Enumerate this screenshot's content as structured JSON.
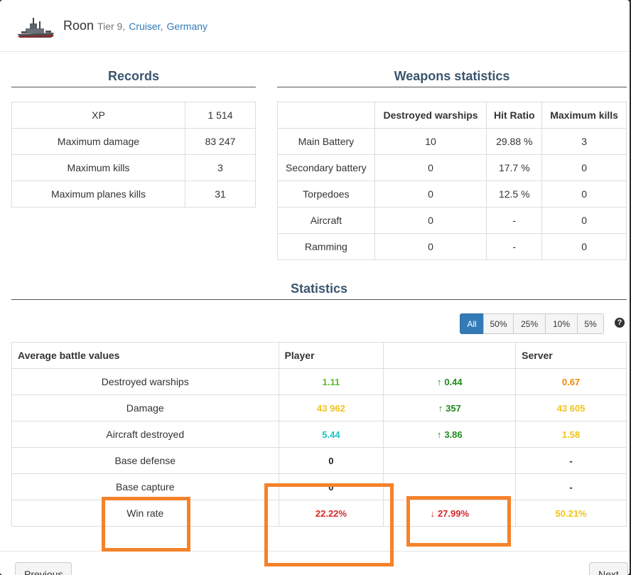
{
  "ship": {
    "name": "Roon",
    "tier": "Tier 9,",
    "type_link": "Cruiser,",
    "nation_link": "Germany"
  },
  "records": {
    "title": "Records",
    "rows": [
      {
        "label": "XP",
        "value": "1 514"
      },
      {
        "label": "Maximum damage",
        "value": "83 247"
      },
      {
        "label": "Maximum kills",
        "value": "3"
      },
      {
        "label": "Maximum planes kills",
        "value": "31"
      }
    ]
  },
  "weapons": {
    "title": "Weapons statistics",
    "headers": [
      "",
      "Destroyed warships",
      "Hit Ratio",
      "Maximum kills"
    ],
    "rows": [
      [
        "Main Battery",
        "10",
        "29.88 %",
        "3"
      ],
      [
        "Secondary battery",
        "0",
        "17.7 %",
        "0"
      ],
      [
        "Torpedoes",
        "0",
        "12.5 %",
        "0"
      ],
      [
        "Aircraft",
        "0",
        "-",
        "0"
      ],
      [
        "Ramming",
        "0",
        "-",
        "0"
      ]
    ]
  },
  "statistics": {
    "title": "Statistics",
    "filters": [
      "All",
      "50%",
      "25%",
      "10%",
      "5%"
    ],
    "help": "?",
    "headers": [
      "Average battle values",
      "Player",
      "",
      "Server"
    ],
    "rows": [
      {
        "label": "Destroyed warships",
        "player": "1.11",
        "player_color": "green",
        "diff": "0.44",
        "diff_dir": "up",
        "server": "0.67",
        "server_color": "orange"
      },
      {
        "label": "Damage",
        "player": "43 962",
        "player_color": "yellow",
        "diff": "357",
        "diff_dir": "up",
        "server": "43 605",
        "server_color": "yellow"
      },
      {
        "label": "Aircraft destroyed",
        "player": "5.44",
        "player_color": "cyan",
        "diff": "3.86",
        "diff_dir": "up",
        "server": "1.58",
        "server_color": "yellow"
      },
      {
        "label": "Base defense",
        "player": "0",
        "player_color": "black",
        "diff": "",
        "diff_dir": "",
        "server": "-",
        "server_color": "black"
      },
      {
        "label": "Base capture",
        "player": "0",
        "player_color": "black",
        "diff": "",
        "diff_dir": "",
        "server": "-",
        "server_color": "black"
      },
      {
        "label": "Win rate",
        "player": "22.22%",
        "player_color": "red",
        "diff": "27.99%",
        "diff_dir": "down",
        "server": "50.21%",
        "server_color": "yellow"
      }
    ]
  },
  "footer": {
    "previous_label": "Previous",
    "next_label": "Next"
  },
  "colors": {
    "accent": "#337ab7",
    "heading": "#3b556e",
    "highlight": "#f5822a"
  }
}
